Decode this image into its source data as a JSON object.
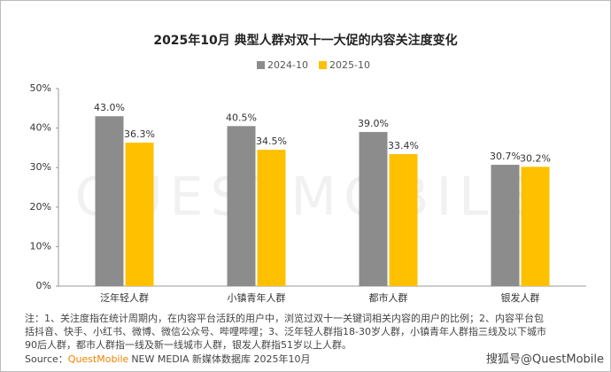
{
  "chart_data": {
    "type": "bar",
    "title": "2025年10月 典型人群对双十一大促的内容关注度变化",
    "categories": [
      "泛年轻人群",
      "小镇青年人群",
      "都市人群",
      "银发人群"
    ],
    "series": [
      {
        "name": "2024-10",
        "color": "#8c8c8c",
        "values": [
          43.0,
          40.5,
          39.0,
          30.7
        ],
        "value_labels": [
          "43.0%",
          "40.5%",
          "39.0%",
          "30.7%"
        ]
      },
      {
        "name": "2025-10",
        "color": "#ffc000",
        "values": [
          36.3,
          34.5,
          33.4,
          30.2
        ],
        "value_labels": [
          "36.3%",
          "34.5%",
          "33.4%",
          "30.2%"
        ]
      }
    ],
    "ylim": [
      0,
      50
    ],
    "yticks": [
      {
        "value": 0,
        "label": "0%"
      },
      {
        "value": 10,
        "label": "10%"
      },
      {
        "value": 20,
        "label": "20%"
      },
      {
        "value": 30,
        "label": "30%"
      },
      {
        "value": 40,
        "label": "40%"
      },
      {
        "value": 50,
        "label": "50%"
      }
    ],
    "grid": false,
    "legend": "top",
    "notes": [
      "注：1、关注度指在统计周期内，在内容平台活跃的用户中，浏览过双十一关键词相关内容的用户的比例；2、内容平台包",
      "括抖音、快手、小红书、微博、微信公众号、哔哩哔哩；3、泛年轻人群指18-30岁人群，小镇青年人群指三线及以下城市",
      "90后人群，都市人群指一线及新一线城市人群，银发人群指51岁以上人群。"
    ],
    "source_label": "Source：",
    "source_brand": "QuestMobile",
    "source_rest": "NEW MEDIA 新媒体数据库 2025年10月",
    "watermark": "QUESTMOBILE",
    "credit": "搜狐号@QuestMobile"
  }
}
